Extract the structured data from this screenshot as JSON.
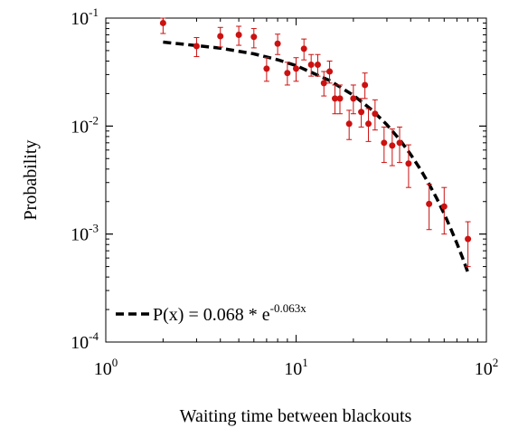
{
  "chart_data": {
    "type": "scatter",
    "xlabel": "Waiting time between blackouts",
    "ylabel": "Probability",
    "x_scale": "log",
    "y_scale": "log",
    "xlim": [
      1,
      100
    ],
    "ylim": [
      0.0001,
      0.1
    ],
    "x_ticks": [
      {
        "value": 1,
        "base": "10",
        "exp": "0"
      },
      {
        "value": 10,
        "base": "10",
        "exp": "1"
      },
      {
        "value": 100,
        "base": "10",
        "exp": "2"
      }
    ],
    "y_ticks": [
      {
        "value": 0.1,
        "base": "10",
        "exp": "-1"
      },
      {
        "value": 0.01,
        "base": "10",
        "exp": "-2"
      },
      {
        "value": 0.001,
        "base": "10",
        "exp": "-3"
      },
      {
        "value": 0.0001,
        "base": "10",
        "exp": "-4"
      }
    ],
    "grid": false,
    "legend_position": "bottom-left",
    "series": [
      {
        "kind": "points",
        "color": "#cc1111",
        "points": [
          {
            "x": 2,
            "y": 0.09,
            "ylo": 0.072,
            "yhi": 0.1
          },
          {
            "x": 3,
            "y": 0.055,
            "ylo": 0.044,
            "yhi": 0.066
          },
          {
            "x": 4,
            "y": 0.068,
            "ylo": 0.054,
            "yhi": 0.082
          },
          {
            "x": 5,
            "y": 0.07,
            "ylo": 0.056,
            "yhi": 0.084
          },
          {
            "x": 6,
            "y": 0.067,
            "ylo": 0.053,
            "yhi": 0.08
          },
          {
            "x": 7,
            "y": 0.034,
            "ylo": 0.026,
            "yhi": 0.043
          },
          {
            "x": 8,
            "y": 0.058,
            "ylo": 0.046,
            "yhi": 0.071
          },
          {
            "x": 9,
            "y": 0.031,
            "ylo": 0.024,
            "yhi": 0.039
          },
          {
            "x": 10,
            "y": 0.034,
            "ylo": 0.026,
            "yhi": 0.043
          },
          {
            "x": 11,
            "y": 0.052,
            "ylo": 0.041,
            "yhi": 0.064
          },
          {
            "x": 12,
            "y": 0.037,
            "ylo": 0.029,
            "yhi": 0.046
          },
          {
            "x": 13,
            "y": 0.037,
            "ylo": 0.029,
            "yhi": 0.046
          },
          {
            "x": 14,
            "y": 0.025,
            "ylo": 0.019,
            "yhi": 0.032
          },
          {
            "x": 15,
            "y": 0.032,
            "ylo": 0.025,
            "yhi": 0.04
          },
          {
            "x": 16,
            "y": 0.018,
            "ylo": 0.013,
            "yhi": 0.024
          },
          {
            "x": 17,
            "y": 0.018,
            "ylo": 0.013,
            "yhi": 0.024
          },
          {
            "x": 19,
            "y": 0.0105,
            "ylo": 0.0075,
            "yhi": 0.014
          },
          {
            "x": 20,
            "y": 0.018,
            "ylo": 0.013,
            "yhi": 0.024
          },
          {
            "x": 22,
            "y": 0.0135,
            "ylo": 0.0098,
            "yhi": 0.018
          },
          {
            "x": 23,
            "y": 0.024,
            "ylo": 0.018,
            "yhi": 0.031
          },
          {
            "x": 24,
            "y": 0.0105,
            "ylo": 0.0072,
            "yhi": 0.0145
          },
          {
            "x": 26,
            "y": 0.013,
            "ylo": 0.0092,
            "yhi": 0.0175
          },
          {
            "x": 29,
            "y": 0.007,
            "ylo": 0.0046,
            "yhi": 0.0098
          },
          {
            "x": 32,
            "y": 0.0066,
            "ylo": 0.0043,
            "yhi": 0.0094
          },
          {
            "x": 35,
            "y": 0.007,
            "ylo": 0.0046,
            "yhi": 0.0098
          },
          {
            "x": 39,
            "y": 0.0045,
            "ylo": 0.0027,
            "yhi": 0.0067
          },
          {
            "x": 50,
            "y": 0.0019,
            "ylo": 0.0011,
            "yhi": 0.0029
          },
          {
            "x": 60,
            "y": 0.0018,
            "ylo": 0.001,
            "yhi": 0.0027
          },
          {
            "x": 80,
            "y": 0.0009,
            "ylo": 0.0005,
            "yhi": 0.0013
          }
        ]
      },
      {
        "kind": "fit",
        "color": "#000000",
        "style": "dashed",
        "label_prefix": "P(x) = 0.068 * e",
        "label_exp": "-0.063x",
        "x": [
          2,
          4,
          6,
          8,
          10,
          15,
          20,
          25,
          30,
          35,
          40,
          45,
          50,
          55,
          60,
          65,
          70,
          75,
          80
        ],
        "y": [
          0.06,
          0.0527,
          0.0467,
          0.0412,
          0.0363,
          0.0264,
          0.0193,
          0.0141,
          0.0103,
          0.0075,
          0.00546,
          0.00398,
          0.0029,
          0.00212,
          0.00154,
          0.00112,
          0.00082,
          0.0006,
          0.00044
        ]
      }
    ]
  }
}
